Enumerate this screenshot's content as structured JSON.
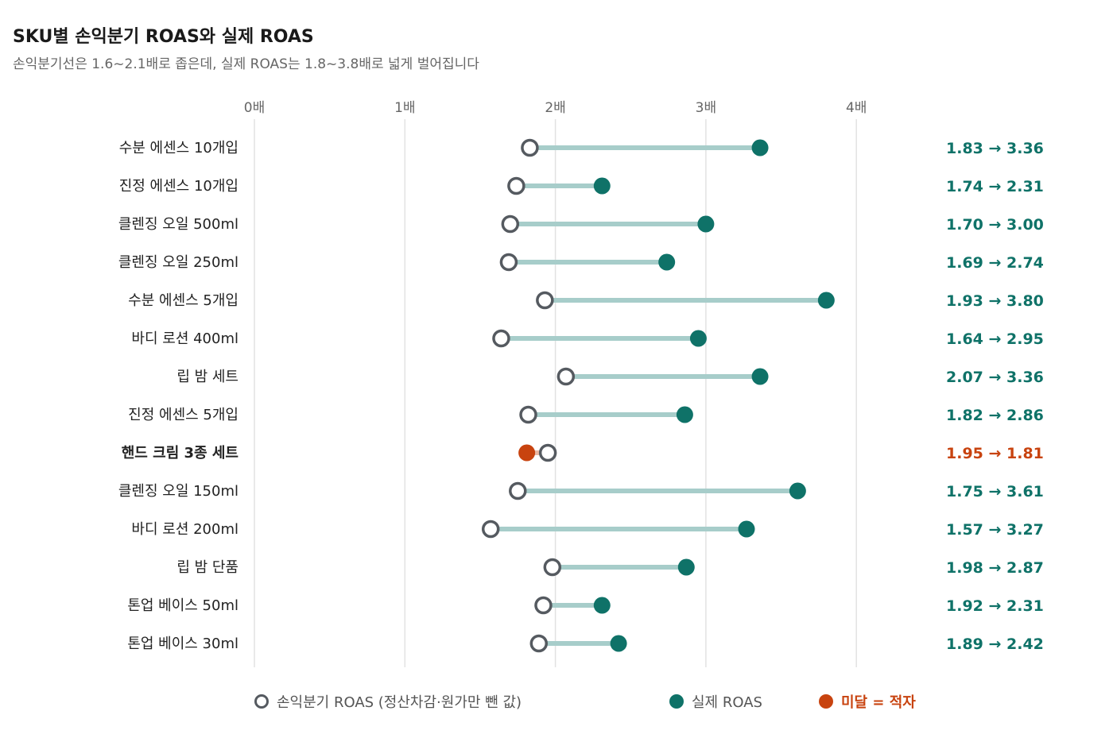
{
  "title": "SKU별 손익분기 ROAS와 실제 ROAS",
  "subtitle": "손익분기선은 1.6~2.1배로 좁은데, 실제 ROAS는 1.8~3.8배로 넓게 벌어집니다",
  "legend": {
    "breakeven": "손익분기 ROAS (정산차감·원가만 뺀 값)",
    "actual": "실제 ROAS",
    "deficit": "미달 = 적자"
  },
  "colors": {
    "teal": "#0f7268",
    "teal_line": "#a7cdca",
    "red": "#c8430f",
    "red_line": "#e9b8a4",
    "hollow": "#555a60",
    "grid": "#e2e2e2"
  },
  "chart_data": {
    "type": "dumbbell",
    "xlim": [
      0,
      4
    ],
    "x_ticks": [
      0,
      1,
      2,
      3,
      4
    ],
    "x_tick_labels": [
      "0배",
      "1배",
      "2배",
      "3배",
      "4배"
    ],
    "series": [
      {
        "name": "손익분기 ROAS (정산차감·원가만 뺀 값)"
      },
      {
        "name": "실제 ROAS"
      }
    ],
    "rows": [
      {
        "label": "수분 에센스 10개입",
        "breakeven": 1.83,
        "actual": 3.36,
        "value_label": "1.83 → 3.36"
      },
      {
        "label": "진정 에센스 10개입",
        "breakeven": 1.74,
        "actual": 2.31,
        "value_label": "1.74 → 2.31"
      },
      {
        "label": "클렌징 오일 500ml",
        "breakeven": 1.7,
        "actual": 3.0,
        "value_label": "1.70 → 3.00"
      },
      {
        "label": "클렌징 오일 250ml",
        "breakeven": 1.69,
        "actual": 2.74,
        "value_label": "1.69 → 2.74"
      },
      {
        "label": "수분 에센스 5개입",
        "breakeven": 1.93,
        "actual": 3.8,
        "value_label": "1.93 → 3.80"
      },
      {
        "label": "바디 로션 400ml",
        "breakeven": 1.64,
        "actual": 2.95,
        "value_label": "1.64 → 2.95"
      },
      {
        "label": "립 밤 세트",
        "breakeven": 2.07,
        "actual": 3.36,
        "value_label": "2.07 → 3.36"
      },
      {
        "label": "진정 에센스 5개입",
        "breakeven": 1.82,
        "actual": 2.86,
        "value_label": "1.82 → 2.86"
      },
      {
        "label": "핸드 크림 3종 세트",
        "breakeven": 1.95,
        "actual": 1.81,
        "value_label": "1.95 → 1.81",
        "deficit": true
      },
      {
        "label": "클렌징 오일 150ml",
        "breakeven": 1.75,
        "actual": 3.61,
        "value_label": "1.75 → 3.61"
      },
      {
        "label": "바디 로션 200ml",
        "breakeven": 1.57,
        "actual": 3.27,
        "value_label": "1.57 → 3.27"
      },
      {
        "label": "립 밤 단품",
        "breakeven": 1.98,
        "actual": 2.87,
        "value_label": "1.98 → 2.87"
      },
      {
        "label": "톤업 베이스 50ml",
        "breakeven": 1.92,
        "actual": 2.31,
        "value_label": "1.92 → 2.31"
      },
      {
        "label": "톤업 베이스 30ml",
        "breakeven": 1.89,
        "actual": 2.42,
        "value_label": "1.89 → 2.42"
      }
    ]
  }
}
